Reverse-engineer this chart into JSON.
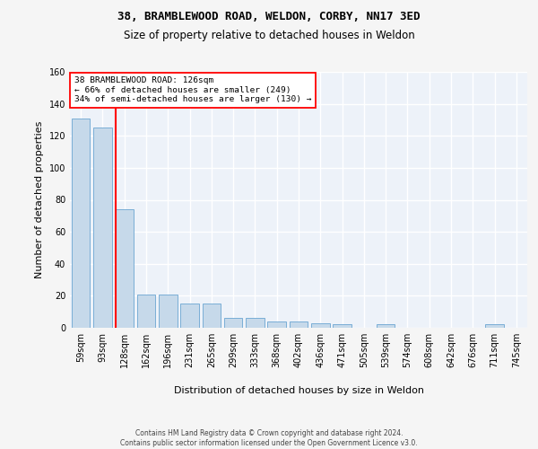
{
  "title1": "38, BRAMBLEWOOD ROAD, WELDON, CORBY, NN17 3ED",
  "title2": "Size of property relative to detached houses in Weldon",
  "xlabel": "Distribution of detached houses by size in Weldon",
  "ylabel": "Number of detached properties",
  "categories": [
    "59sqm",
    "93sqm",
    "128sqm",
    "162sqm",
    "196sqm",
    "231sqm",
    "265sqm",
    "299sqm",
    "333sqm",
    "368sqm",
    "402sqm",
    "436sqm",
    "471sqm",
    "505sqm",
    "539sqm",
    "574sqm",
    "608sqm",
    "642sqm",
    "676sqm",
    "711sqm",
    "745sqm"
  ],
  "values": [
    131,
    125,
    74,
    21,
    21,
    15,
    15,
    6,
    6,
    4,
    4,
    3,
    2,
    0,
    2,
    0,
    0,
    0,
    0,
    2,
    0
  ],
  "bar_color": "#c6d9ea",
  "bar_edge_color": "#7aaed6",
  "red_line_x": 1.62,
  "annotation_line1": "38 BRAMBLEWOOD ROAD: 126sqm",
  "annotation_line2": "← 66% of detached houses are smaller (249)",
  "annotation_line3": "34% of semi-detached houses are larger (130) →",
  "ylim_max": 160,
  "yticks": [
    0,
    20,
    40,
    60,
    80,
    100,
    120,
    140,
    160
  ],
  "plot_bg": "#edf2f9",
  "fig_bg": "#f5f5f5",
  "grid_color": "#ffffff",
  "footer1": "Contains HM Land Registry data © Crown copyright and database right 2024.",
  "footer2": "Contains public sector information licensed under the Open Government Licence v3.0."
}
